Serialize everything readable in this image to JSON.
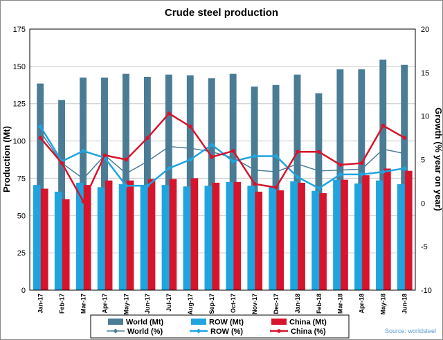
{
  "chart_data": {
    "type": "bar+line",
    "title": "Crude steel production",
    "ylabel_left": "Production (Mt)",
    "ylabel_right": "Growth (% year on year)",
    "ylim_left": [
      0,
      175
    ],
    "yticks_left": [
      "0",
      "25",
      "50",
      "75",
      "100",
      "125",
      "150",
      "175"
    ],
    "ylim_right": [
      -10,
      20
    ],
    "yticks_right": [
      "-10",
      "-5",
      "0",
      "5",
      "10",
      "15",
      "20"
    ],
    "categories": [
      "Jan-17",
      "Feb-17",
      "Mar-17",
      "Apr-17",
      "May-17",
      "Jun-17",
      "Jul-17",
      "Aug-17",
      "Sep-17",
      "Oct-17",
      "Nov-17",
      "Dec-17",
      "Jan-18",
      "Feb-18",
      "Mar-18",
      "Apr-18",
      "May-18",
      "Jun-18"
    ],
    "bar_series": [
      {
        "name": "World (Mt)",
        "color": "#4a7c96",
        "values": [
          138.5,
          127.5,
          142.5,
          142.5,
          145,
          143,
          144.5,
          144,
          142,
          145,
          136.5,
          137.5,
          144.5,
          132,
          148,
          148,
          154.5,
          151
        ]
      },
      {
        "name": "ROW (Mt)",
        "color": "#1fa4df",
        "values": [
          70.5,
          66,
          72,
          69,
          71,
          70.5,
          70.5,
          69.5,
          70,
          72.5,
          70,
          69.5,
          73,
          66.5,
          74,
          71.5,
          73.5,
          71
        ]
      },
      {
        "name": "China (Mt)",
        "color": "#d7142c",
        "values": [
          68,
          61,
          70.5,
          73.5,
          73.5,
          74.5,
          74.5,
          75,
          72,
          72.5,
          66,
          67,
          72,
          65,
          74,
          77,
          81.5,
          80
        ]
      }
    ],
    "line_series": [
      {
        "name": "World (%)",
        "color": "#4a7c96",
        "values": [
          8.2,
          4.6,
          2.8,
          5.5,
          3.4,
          4.8,
          6.5,
          6.3,
          5.9,
          5.2,
          3.8,
          3.6,
          4.5,
          3.7,
          3.8,
          3.9,
          6.2,
          5.7
        ]
      },
      {
        "name": "ROW (%)",
        "color": "#1fa4df",
        "values": [
          8.8,
          4.8,
          6.0,
          5.2,
          2.0,
          2.0,
          4.0,
          5.0,
          6.7,
          4.8,
          5.4,
          5.4,
          3.0,
          1.7,
          3.3,
          3.3,
          3.6,
          4.0
        ]
      },
      {
        "name": "China (%)",
        "color": "#d7142c",
        "values": [
          7.5,
          4.6,
          0.2,
          5.5,
          5.0,
          7.5,
          10.3,
          8.8,
          5.3,
          6.0,
          2.2,
          1.8,
          5.9,
          5.9,
          4.4,
          4.6,
          8.9,
          7.5
        ]
      }
    ],
    "legend_position": "bottom",
    "gridlines": true,
    "source": "Source: worldsteel"
  }
}
